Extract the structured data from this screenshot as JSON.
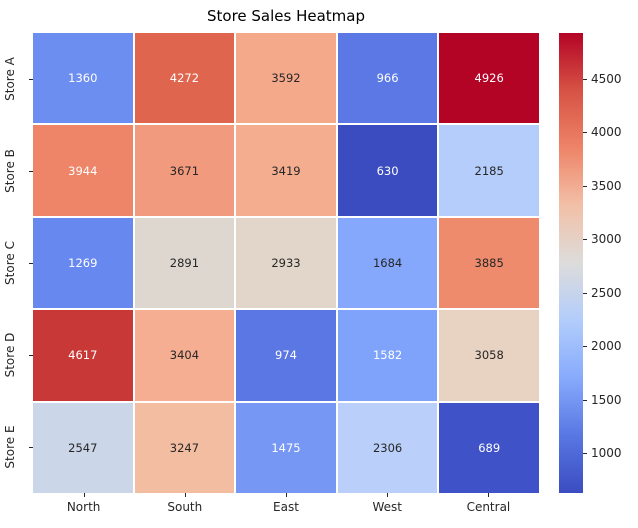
{
  "chart_data": {
    "type": "heatmap",
    "title": "Store Sales Heatmap",
    "rows": [
      "Store A",
      "Store B",
      "Store C",
      "Store D",
      "Store E"
    ],
    "columns": [
      "North",
      "South",
      "East",
      "West",
      "Central"
    ],
    "values": [
      [
        1360,
        4272,
        3592,
        966,
        4926
      ],
      [
        3944,
        3671,
        3419,
        630,
        2185
      ],
      [
        1269,
        2891,
        2933,
        1684,
        3885
      ],
      [
        4617,
        3404,
        974,
        1582,
        3058
      ],
      [
        2547,
        3247,
        1475,
        2306,
        689
      ]
    ],
    "cell_colors": [
      [
        "#6d8ef1",
        "#e0654e",
        "#f5a98b",
        "#5b78e4",
        "#b40426"
      ],
      [
        "#ee8468",
        "#f29a7d",
        "#f5ad90",
        "#3b4cc0",
        "#b5cdfa"
      ],
      [
        "#6788ee",
        "#ddd7d0",
        "#e2d6ca",
        "#85a8fc",
        "#ef8b6d"
      ],
      [
        "#c83836",
        "#f5ae92",
        "#5b77e3",
        "#7fa3fb",
        "#e8d2c2"
      ],
      [
        "#ccd6e9",
        "#f3bda2",
        "#7698f4",
        "#bad0fb",
        "#3f52c7"
      ]
    ],
    "text_colors": [
      [
        "#ffffff",
        "#ffffff",
        "#262626",
        "#ffffff",
        "#ffffff"
      ],
      [
        "#ffffff",
        "#262626",
        "#262626",
        "#ffffff",
        "#262626"
      ],
      [
        "#ffffff",
        "#262626",
        "#262626",
        "#262626",
        "#262626"
      ],
      [
        "#ffffff",
        "#262626",
        "#ffffff",
        "#ffffff",
        "#262626"
      ],
      [
        "#262626",
        "#262626",
        "#ffffff",
        "#262626",
        "#ffffff"
      ]
    ],
    "colormap": "coolwarm",
    "vmin": 630,
    "vmax": 4926,
    "colorbar_ticks": [
      1000,
      1500,
      2000,
      2500,
      3000,
      3500,
      4000,
      4500
    ],
    "colorbar_gradient": [
      {
        "t": 0.0,
        "color": "#3b4cc0"
      },
      {
        "t": 0.125,
        "color": "#5977e3"
      },
      {
        "t": 0.25,
        "color": "#87aafc"
      },
      {
        "t": 0.375,
        "color": "#b2cdfb"
      },
      {
        "t": 0.5,
        "color": "#dddcdb"
      },
      {
        "t": 0.625,
        "color": "#f2c0a7"
      },
      {
        "t": 0.75,
        "color": "#ee8468"
      },
      {
        "t": 0.875,
        "color": "#d65244"
      },
      {
        "t": 1.0,
        "color": "#b40426"
      }
    ],
    "legend_position": "right",
    "grid_line_color": "#ffffff"
  }
}
